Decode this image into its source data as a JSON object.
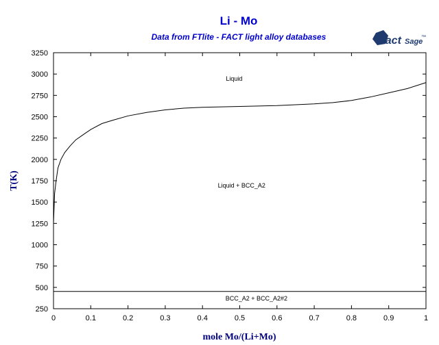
{
  "chart_data": {
    "type": "line",
    "title": "Li - Mo",
    "subtitle": "Data from FTlite - FACT light alloy databases",
    "xlabel": "mole Mo/(Li+Mo)",
    "ylabel": "T(K)",
    "xlim": [
      0,
      1
    ],
    "ylim": [
      250,
      3250
    ],
    "xticks": [
      0,
      0.1,
      0.2,
      0.3,
      0.4,
      0.5,
      0.6,
      0.7,
      0.8,
      0.9,
      1
    ],
    "yticks": [
      250,
      500,
      750,
      1000,
      1250,
      1500,
      1750,
      2000,
      2250,
      2500,
      2750,
      3000,
      3250
    ],
    "xtick_labels": [
      "0",
      "0.1",
      "0.2",
      "0.3",
      "0.4",
      "0.5",
      "0.6",
      "0.7",
      "0.8",
      "0.9",
      "1"
    ],
    "ytick_labels": [
      "250",
      "500",
      "750",
      "1000",
      "1250",
      "1500",
      "1750",
      "2000",
      "2250",
      "2500",
      "2750",
      "3000",
      "3250"
    ],
    "grid": false,
    "series": [
      {
        "x": [
          0,
          0.003,
          0.007,
          0.012,
          0.02,
          0.03,
          0.045,
          0.06,
          0.08,
          0.1,
          0.13,
          0.16,
          0.2,
          0.25,
          0.3,
          0.35,
          0.4,
          0.5,
          0.6,
          0.7,
          0.75,
          0.8,
          0.85,
          0.9,
          0.95,
          1.0
        ],
        "y": [
          1250,
          1600,
          1750,
          1900,
          2000,
          2080,
          2160,
          2230,
          2290,
          2350,
          2420,
          2460,
          2510,
          2550,
          2580,
          2600,
          2610,
          2620,
          2630,
          2650,
          2665,
          2690,
          2730,
          2780,
          2830,
          2900
        ]
      },
      {
        "x": [
          0,
          1
        ],
        "y": [
          452,
          452
        ]
      }
    ],
    "annotations": [
      {
        "text": "Liquid",
        "x": 0.485,
        "y": 2920
      },
      {
        "text": "Liquid + BCC_A2",
        "x": 0.505,
        "y": 1670
      },
      {
        "text": "BCC_A2 + BCC_A2#2",
        "x": 0.545,
        "y": 345
      }
    ]
  },
  "logo": {
    "main": "Fact",
    "sub": "Sage",
    "mark": "™",
    "color": "#1f3a6e"
  },
  "colors": {
    "title": "#0000cc",
    "axis_label": "#000080",
    "line": "#000000"
  }
}
